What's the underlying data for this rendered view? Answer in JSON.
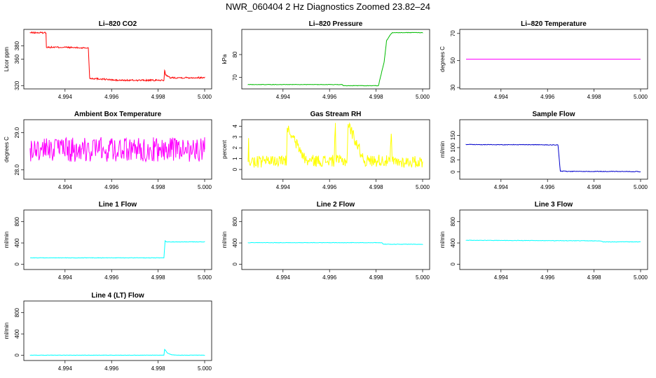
{
  "figure": {
    "title": "NWR_060404  2 Hz Diagnostics Zoomed 23.82–24"
  },
  "chart_data": [
    {
      "type": "line",
      "title": "Li–820 CO2",
      "ylabel": "Licor ppm",
      "color": "#ff0000",
      "xlim": [
        4.9925,
        5.0
      ],
      "xticks": [
        "4.994",
        "4.996",
        "4.998",
        "5.000"
      ],
      "ylim": [
        315,
        405
      ],
      "yticks": [
        320,
        360,
        380
      ],
      "x": [
        4.9925,
        4.99318,
        4.9932,
        4.99395,
        4.99475,
        4.995,
        4.99506,
        4.9956,
        4.9962,
        4.9968,
        4.9974,
        4.9979,
        4.99825,
        4.99828,
        4.99833,
        4.9985,
        4.999,
        4.9995,
        5.0
      ],
      "y": [
        400,
        400,
        378,
        378,
        377,
        377,
        331,
        330,
        328,
        328,
        328,
        328,
        328,
        343,
        336,
        332,
        332,
        332,
        332
      ],
      "noise": 1.2
    },
    {
      "type": "line",
      "title": "Li–820 Pressure",
      "ylabel": "kPa",
      "color": "#00bb00",
      "xlim": [
        4.9925,
        5.0
      ],
      "xticks": [
        "4.994",
        "4.996",
        "4.998",
        "5.000"
      ],
      "ylim": [
        65,
        91
      ],
      "yticks": [
        70,
        80
      ],
      "x": [
        4.9925,
        4.994,
        4.9955,
        4.99655,
        4.9966,
        4.9977,
        4.9981,
        4.99835,
        4.99845,
        4.9986,
        4.9987,
        4.999,
        4.9995,
        5.0
      ],
      "y": [
        66.9,
        66.9,
        66.9,
        66.9,
        66.4,
        66.4,
        66.4,
        77,
        86,
        88.5,
        89.6,
        89.6,
        89.6,
        89.6
      ],
      "noise": 0.1
    },
    {
      "type": "line",
      "title": "Li–820 Temperature",
      "ylabel": "degrees C",
      "color": "#ff00ff",
      "xlim": [
        4.9925,
        5.0
      ],
      "xticks": [
        "4.994",
        "4.996",
        "4.998",
        "5.000"
      ],
      "ylim": [
        29,
        73
      ],
      "yticks": [
        30,
        50,
        70
      ],
      "x": [
        4.9925,
        5.0
      ],
      "y": [
        51,
        51
      ],
      "noise": 0
    },
    {
      "type": "line",
      "title": "Ambient Box Temperature",
      "ylabel": "degrees C",
      "color": "#ff00ff",
      "xlim": [
        4.9925,
        5.0
      ],
      "xticks": [
        "4.994",
        "4.996",
        "4.998",
        "5.000"
      ],
      "ylim": [
        27.75,
        29.35
      ],
      "yticks": [
        28.0,
        29.0
      ],
      "x": [
        4.9925,
        5.0
      ],
      "y": [
        28.55,
        28.55
      ],
      "noise": 0.33
    },
    {
      "type": "line",
      "title": "Gas Stream RH",
      "ylabel": "percent",
      "color": "#ffff00",
      "xlim": [
        4.9925,
        5.0
      ],
      "xticks": [
        "4.994",
        "4.996",
        "4.998",
        "5.000"
      ],
      "ylim": [
        -0.9,
        4.6
      ],
      "yticks": [
        0,
        1,
        2,
        3,
        4
      ],
      "x": [
        4.9925,
        4.99252,
        4.99254,
        4.9935,
        4.99415,
        4.99418,
        4.995,
        4.9962,
        4.99625,
        4.99628,
        4.9963,
        4.99675,
        4.9968,
        4.9975,
        4.998,
        4.9981,
        4.9986,
        4.99865,
        4.9987,
        5.0
      ],
      "y": [
        0.7,
        2.9,
        0.7,
        0.75,
        0.75,
        3.8,
        0.8,
        0.8,
        4.3,
        0.9,
        0.8,
        0.8,
        4.2,
        0.8,
        0.8,
        0.9,
        0.7,
        3.3,
        0.7,
        0.7
      ],
      "noise": 0.55
    },
    {
      "type": "line",
      "title": "Sample Flow",
      "ylabel": "ml/min",
      "color": "#0000cc",
      "xlim": [
        4.9925,
        5.0
      ],
      "xticks": [
        "4.994",
        "4.996",
        "4.998",
        "5.000"
      ],
      "ylim": [
        -30,
        215
      ],
      "yticks": [
        0,
        50,
        100,
        150
      ],
      "x": [
        4.9925,
        4.9935,
        4.9945,
        4.9955,
        4.99645,
        4.99655,
        4.997,
        4.998,
        4.999,
        5.0
      ],
      "y": [
        113,
        112,
        112,
        112,
        111,
        3,
        2,
        2,
        2,
        1
      ],
      "noise": 1.2
    },
    {
      "type": "line",
      "title": "Line 1 Flow",
      "ylabel": "ml/min",
      "color": "#00ffff",
      "xlim": [
        4.9925,
        5.0
      ],
      "xticks": [
        "4.994",
        "4.996",
        "4.998",
        "5.000"
      ],
      "ylim": [
        -100,
        1020
      ],
      "yticks": [
        0,
        400,
        800
      ],
      "x": [
        4.9925,
        4.995,
        4.99825,
        4.9983,
        4.99835,
        4.999,
        5.0
      ],
      "y": [
        120,
        120,
        120,
        440,
        420,
        420,
        420
      ],
      "noise": 4
    },
    {
      "type": "line",
      "title": "Line 2 Flow",
      "ylabel": "ml/min",
      "color": "#00ffff",
      "xlim": [
        4.9925,
        5.0
      ],
      "xticks": [
        "4.994",
        "4.996",
        "4.998",
        "5.000"
      ],
      "ylim": [
        -100,
        1020
      ],
      "yticks": [
        0,
        400,
        800
      ],
      "x": [
        4.9925,
        4.995,
        4.99825,
        4.99832,
        4.999,
        5.0
      ],
      "y": [
        405,
        405,
        405,
        375,
        375,
        375
      ],
      "noise": 4
    },
    {
      "type": "line",
      "title": "Line 3 Flow",
      "ylabel": "ml/min",
      "color": "#00ffff",
      "xlim": [
        4.9925,
        5.0
      ],
      "xticks": [
        "4.994",
        "4.996",
        "4.998",
        "5.000"
      ],
      "ylim": [
        -100,
        1020
      ],
      "yticks": [
        0,
        400,
        800
      ],
      "x": [
        4.9925,
        4.995,
        4.99825,
        4.9984,
        4.999,
        5.0
      ],
      "y": [
        450,
        445,
        440,
        420,
        420,
        420
      ],
      "noise": 4
    },
    {
      "type": "line",
      "title": "Line 4 (LT) Flow",
      "ylabel": "ml/min",
      "color": "#00ffff",
      "xlim": [
        4.9925,
        5.0
      ],
      "xticks": [
        "4.994",
        "4.996",
        "4.998",
        "5.000"
      ],
      "ylim": [
        -100,
        1020
      ],
      "yticks": [
        0,
        400,
        800
      ],
      "x": [
        4.9925,
        4.995,
        4.99825,
        4.99828,
        4.9984,
        4.9986,
        4.999,
        5.0
      ],
      "y": [
        0,
        0,
        0,
        110,
        40,
        5,
        0,
        0
      ],
      "noise": 3
    }
  ]
}
